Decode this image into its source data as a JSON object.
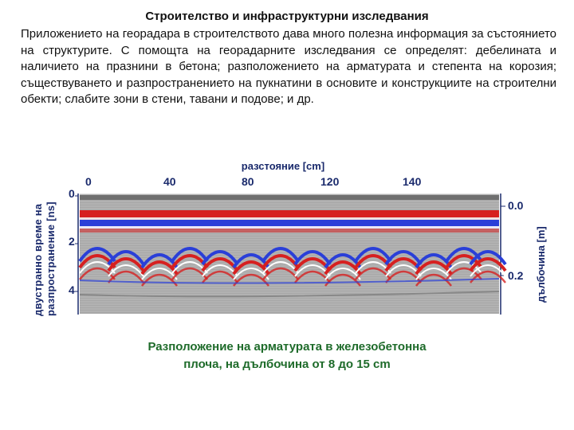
{
  "title": "Строителство и инфраструктурни изследвания",
  "paragraph": "Приложението на георадара в строителството дава много полезна информация за състоянието на структурите. С помощта на георадарните изследвания се определят: дебелината и наличието на празнини в бетона; разположението на арматурата и степента на корозия; съществуването и разпространението на пукнатини в основите и конструкциите на строителни обекти; слабите зони в стени, тавани и подове; и др.",
  "figure": {
    "xlabel": "разстояние [cm]",
    "x_ticks": [
      "0",
      "40",
      "80",
      "120",
      "140"
    ],
    "ylabel_left_line1": "двустранно време на",
    "ylabel_left_line2": "разпространение [ns]",
    "y_ticks_left": [
      "0",
      "2",
      "4"
    ],
    "ylabel_right": "дълбочина [m]",
    "y_ticks_right": [
      "0.0",
      "0.2"
    ],
    "colors": {
      "red": "#d62020",
      "blue": "#2a3fd8",
      "gray": "#9a9a9a",
      "label": "#1a2a6c"
    }
  },
  "caption_line1": "Разположение на арматурата в железобетонна",
  "caption_line2": "плоча, на дълбочина от 8 до 15 cm"
}
